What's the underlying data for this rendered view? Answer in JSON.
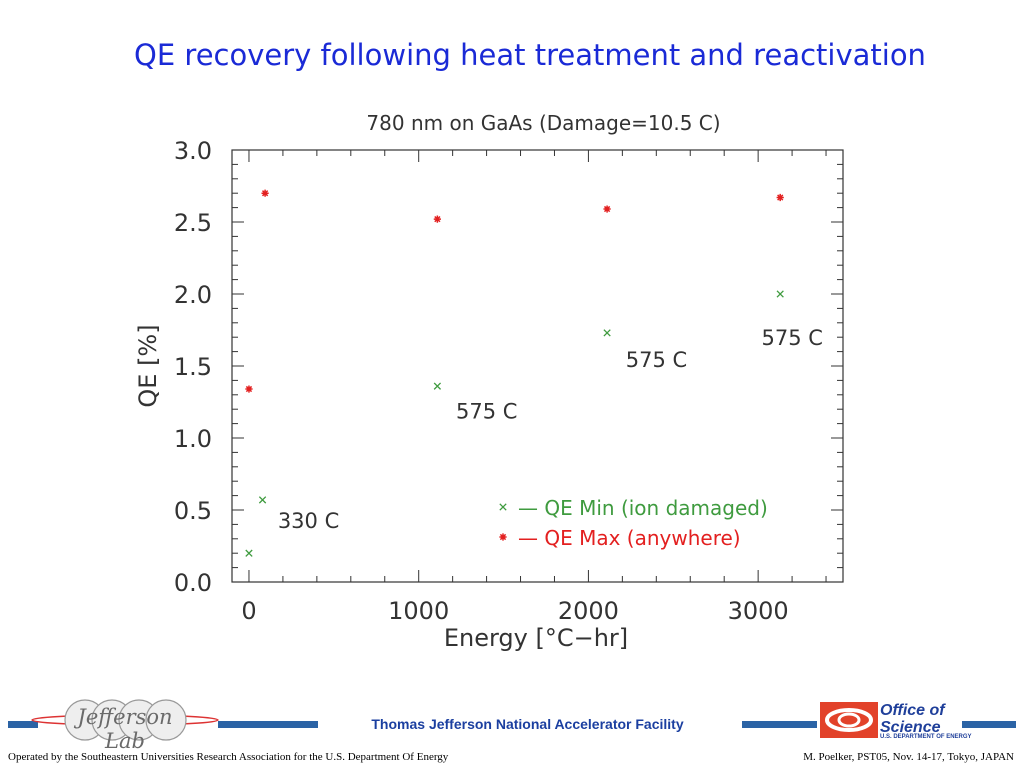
{
  "slide": {
    "title": "QE recovery following heat treatment and reactivation"
  },
  "footer": {
    "center_text": "Thomas Jefferson National Accelerator Facility",
    "left_text": "Operated by the Southeastern Universities Research Association for the U.S. Department Of Energy",
    "right_text": "M. Poelker, PST05, Nov. 14-17, Tokyo, JAPAN",
    "logo_left_text": "Jefferson Lab",
    "logo_right_line1": "Office of",
    "logo_right_line2": "Science",
    "logo_right_dept": "U.S. DEPARTMENT OF ENERGY",
    "bar_color": "#2b63a5"
  },
  "chart_data": {
    "type": "scatter",
    "title": "780 nm on GaAs (Damage=10.5 C)",
    "xlabel": "Energy [°C−hr]",
    "ylabel": "QE [%]",
    "xlim": [
      -100,
      3500
    ],
    "ylim": [
      0,
      3.0
    ],
    "xticks": [
      0,
      1000,
      2000,
      3000
    ],
    "xtick_labels": [
      "0",
      "1000",
      "2000",
      "3000"
    ],
    "yticks": [
      0,
      0.5,
      1.0,
      1.5,
      2.0,
      2.5,
      3.0
    ],
    "ytick_labels": [
      "0.0",
      "0.5",
      "1.0",
      "1.5",
      "2.0",
      "2.5",
      "3.0"
    ],
    "grid": false,
    "legend_position": "lower-right",
    "series": [
      {
        "name": "QE Min (ion damaged)",
        "legend_label": "— QE Min (ion damaged)",
        "marker": "x",
        "color": "#3f9b3f",
        "x": [
          0,
          80,
          1110,
          2110,
          3130
        ],
        "y": [
          0.2,
          0.57,
          1.36,
          1.73,
          2.0
        ]
      },
      {
        "name": "QE Max (anywhere)",
        "legend_label": "— QE Max (anywhere)",
        "marker": "asterisk",
        "color": "#e32020",
        "x": [
          0,
          95,
          1110,
          2110,
          3130
        ],
        "y": [
          1.34,
          2.7,
          2.52,
          2.59,
          2.67
        ]
      }
    ],
    "annotations": [
      {
        "text": "330 C",
        "x": 170,
        "y": 0.43
      },
      {
        "text": "575 C",
        "x": 1220,
        "y": 1.19
      },
      {
        "text": "575 C",
        "x": 2220,
        "y": 1.55
      },
      {
        "text": "575 C",
        "x": 3020,
        "y": 1.7
      }
    ],
    "text_color": "#333333"
  }
}
